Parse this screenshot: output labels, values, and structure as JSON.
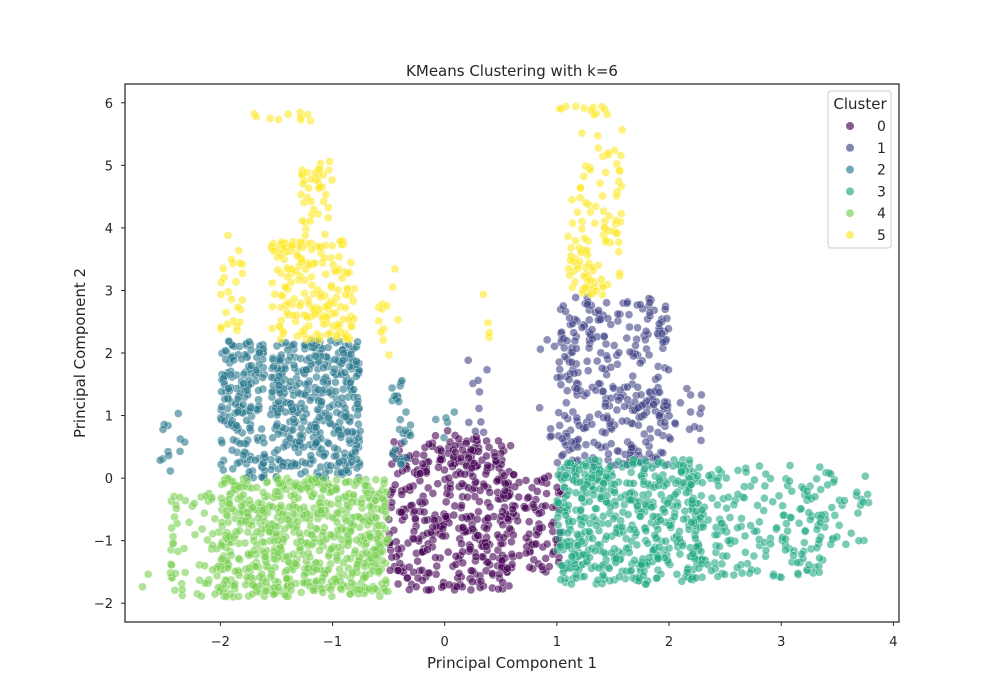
{
  "chart_data": {
    "type": "scatter",
    "title": "KMeans Clustering with k=6",
    "xlabel": "Principal Component 1",
    "ylabel": "Principal Component 2",
    "xlim": [
      -2.85,
      4.05
    ],
    "ylim": [
      -2.3,
      6.3
    ],
    "xticks": [
      -2,
      -1,
      0,
      1,
      2,
      3,
      4
    ],
    "yticks": [
      -2,
      -1,
      0,
      1,
      2,
      3,
      4,
      5,
      6
    ],
    "xtick_labels": [
      "−2",
      "−1",
      "0",
      "1",
      "2",
      "3",
      "4"
    ],
    "ytick_labels": [
      "−2",
      "−1",
      "0",
      "1",
      "2",
      "3",
      "4",
      "5",
      "6"
    ],
    "grid": false,
    "legend": {
      "title": "Cluster",
      "placement": "top-right"
    },
    "series": [
      {
        "name": "0",
        "color": "#440154",
        "regions": [
          {
            "x": [
              -0.5,
              0.6
            ],
            "y": [
              -1.8,
              0.6
            ],
            "n": 380
          },
          {
            "x": [
              0.5,
              1.05
            ],
            "y": [
              -1.5,
              0.1
            ],
            "n": 110
          },
          {
            "x": [
              -0.1,
              0.5
            ],
            "y": [
              0.0,
              0.8
            ],
            "n": 25
          }
        ]
      },
      {
        "name": "1",
        "color": "#414487",
        "regions": [
          {
            "x": [
              1.0,
              2.0
            ],
            "y": [
              0.2,
              2.9
            ],
            "n": 320
          },
          {
            "x": [
              1.9,
              2.3
            ],
            "y": [
              0.5,
              1.5
            ],
            "n": 20
          },
          {
            "x": [
              0.8,
              1.2
            ],
            "y": [
              0.6,
              2.3
            ],
            "n": 15
          },
          {
            "x": [
              0.2,
              0.4
            ],
            "y": [
              0.7,
              1.9
            ],
            "n": 10
          }
        ]
      },
      {
        "name": "2",
        "color": "#2a788e",
        "regions": [
          {
            "x": [
              -1.55,
              -0.75
            ],
            "y": [
              0.0,
              2.2
            ],
            "n": 400
          },
          {
            "x": [
              -2.0,
              -1.6
            ],
            "y": [
              0.0,
              2.2
            ],
            "n": 180
          },
          {
            "x": [
              -0.5,
              -0.3
            ],
            "y": [
              0.2,
              1.6
            ],
            "n": 30
          },
          {
            "x": [
              -2.6,
              -2.3
            ],
            "y": [
              0.1,
              1.1
            ],
            "n": 12
          },
          {
            "x": [
              -0.1,
              0.1
            ],
            "y": [
              0.6,
              1.1
            ],
            "n": 5
          }
        ]
      },
      {
        "name": "3",
        "color": "#22a884",
        "regions": [
          {
            "x": [
              1.0,
              2.3
            ],
            "y": [
              -1.7,
              0.3
            ],
            "n": 520
          },
          {
            "x": [
              2.2,
              3.4
            ],
            "y": [
              -1.6,
              0.2
            ],
            "n": 180
          },
          {
            "x": [
              3.3,
              3.8
            ],
            "y": [
              -1.1,
              0.1
            ],
            "n": 35
          }
        ]
      },
      {
        "name": "4",
        "color": "#7ad151",
        "regions": [
          {
            "x": [
              -2.0,
              -0.5
            ],
            "y": [
              -1.9,
              0.0
            ],
            "n": 700
          },
          {
            "x": [
              -2.45,
              -2.0
            ],
            "y": [
              -1.9,
              -0.2
            ],
            "n": 60
          },
          {
            "x": [
              -2.7,
              -2.5
            ],
            "y": [
              -1.8,
              -1.5
            ],
            "n": 2
          }
        ]
      },
      {
        "name": "5",
        "color": "#fde725",
        "regions": [
          {
            "x": [
              -1.55,
              -0.8
            ],
            "y": [
              2.2,
              3.8
            ],
            "n": 180
          },
          {
            "x": [
              -1.3,
              -1.0
            ],
            "y": [
              3.8,
              5.1
            ],
            "n": 40
          },
          {
            "x": [
              -2.0,
              -1.8
            ],
            "y": [
              2.2,
              3.9
            ],
            "n": 25
          },
          {
            "x": [
              1.1,
              1.6
            ],
            "y": [
              2.9,
              4.5
            ],
            "n": 80
          },
          {
            "x": [
              1.2,
              1.6
            ],
            "y": [
              4.5,
              5.6
            ],
            "n": 25
          },
          {
            "x": [
              1.0,
              1.5
            ],
            "y": [
              5.8,
              5.95
            ],
            "n": 12
          },
          {
            "x": [
              -1.7,
              -1.1
            ],
            "y": [
              5.7,
              5.85
            ],
            "n": 10
          },
          {
            "x": [
              -0.6,
              -0.4
            ],
            "y": [
              1.9,
              3.5
            ],
            "n": 12
          },
          {
            "x": [
              0.3,
              0.4
            ],
            "y": [
              2.2,
              3.5
            ],
            "n": 4
          }
        ]
      }
    ]
  }
}
